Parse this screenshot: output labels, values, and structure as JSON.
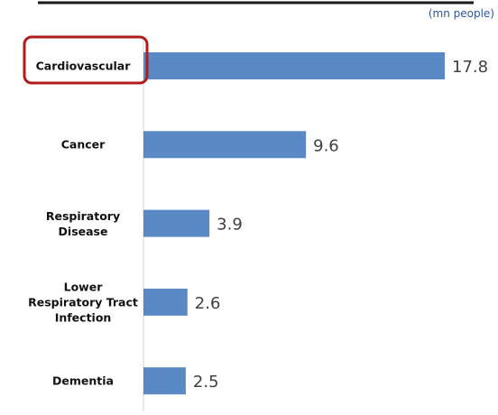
{
  "chart_data": {
    "type": "bar",
    "orientation": "horizontal",
    "unit_label": "(mn people)",
    "categories": [
      "Cardiovascular",
      "Cancer",
      "Respiratory Disease",
      "Lower Respiratory Tract Infection",
      "Dementia"
    ],
    "values": [
      17.8,
      9.6,
      3.9,
      2.6,
      2.5
    ],
    "color": "#5a8ac6"
  }
}
